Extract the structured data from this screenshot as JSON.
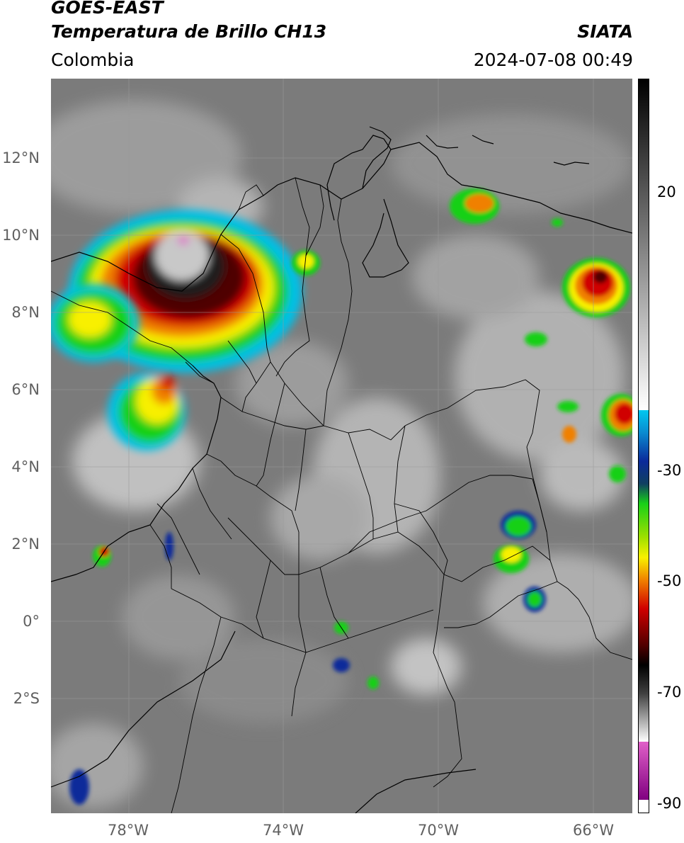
{
  "header": {
    "title_line1": "GOES-EAST",
    "title_line2": "Temperatura de Brillo CH13",
    "organization": "SIATA",
    "region": "Colombia",
    "timestamp": "2024-07-08 00:49"
  },
  "map": {
    "lat_labels": [
      "12°N",
      "10°N",
      "8°N",
      "6°N",
      "4°N",
      "2°N",
      "0°",
      "2°S"
    ],
    "lon_labels": [
      "78°W",
      "74°W",
      "70°W",
      "66°W"
    ],
    "gridlines": true,
    "background": "grayscale infrared brightness temperature"
  },
  "colorbar": {
    "tick_labels": [
      "20",
      "-30",
      "-50",
      "-70",
      "-90"
    ],
    "colors": {
      "cyan": "#00c8f0",
      "blue": "#0a2a9a",
      "green": "#18d018",
      "yellow": "#f8f000",
      "orange": "#f08000",
      "red": "#d00000",
      "dark_red": "#500000",
      "black": "#000000",
      "magenta": "#e060c8",
      "purple": "#800080"
    }
  }
}
